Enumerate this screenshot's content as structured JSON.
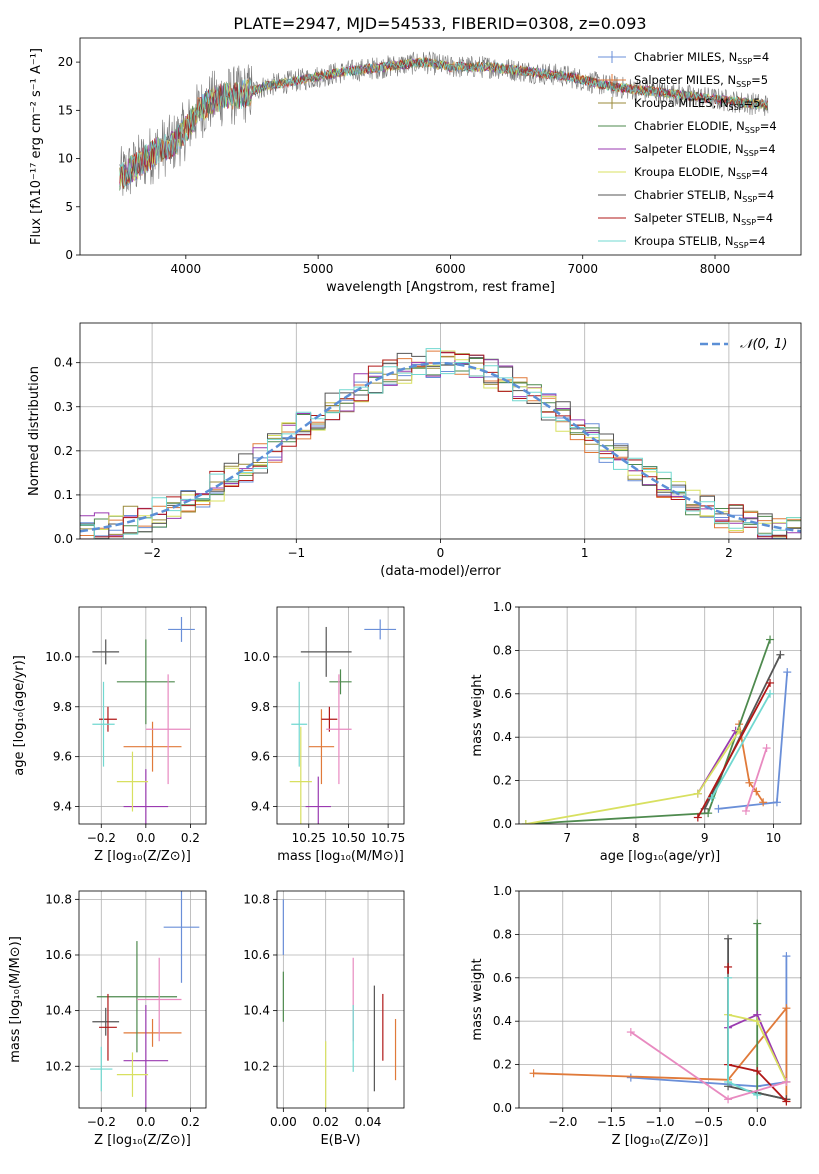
{
  "figure_title": "PLATE=2947, MJD=54533, FIBERID=0308, z=0.093",
  "colors": {
    "Chabrier MILES": "#6a8fd8",
    "Salpeter MILES": "#e07a3a",
    "Kroupa MILES": "#9a8a3a",
    "Chabrier ELODIE": "#4e8a4e",
    "Salpeter ELODIE": "#9a3ab0",
    "Kroupa ELODIE": "#d8e060",
    "Chabrier STELIB": "#555555",
    "Salpeter STELIB": "#b01818",
    "Kroupa STELIB": "#70d8d0",
    "pink": "#e88ac0",
    "gaussian": "#5b8fd6"
  },
  "chart_data": [
    {
      "id": "spectrum",
      "type": "line",
      "title": "PLATE=2947, MJD=54533, FIBERID=0308, z=0.093",
      "xlabel": "wavelength [Angstrom, rest frame]",
      "ylabel": "Flux [fλ10⁻¹⁷ erg cm⁻² s⁻¹ A⁻¹]",
      "xlim": [
        3200,
        8650
      ],
      "ylim": [
        0,
        22.5
      ],
      "xticks": [
        4000,
        5000,
        6000,
        7000,
        8000
      ],
      "yticks": [
        0,
        5,
        10,
        15,
        20
      ],
      "legend": "right",
      "series": [
        {
          "name": "Chabrier MILES, N",
          "sub": "SSP",
          "suffix": "=4"
        },
        {
          "name": "Salpeter MILES, N",
          "sub": "SSP",
          "suffix": "=5"
        },
        {
          "name": "Kroupa MILES, N",
          "sub": "SSP",
          "suffix": "=5"
        },
        {
          "name": "Chabrier ELODIE, N",
          "sub": "SSP",
          "suffix": "=4"
        },
        {
          "name": "Salpeter ELODIE, N",
          "sub": "SSP",
          "suffix": "=4"
        },
        {
          "name": "Kroupa ELODIE, N",
          "sub": "SSP",
          "suffix": "=4"
        },
        {
          "name": "Chabrier STELIB, N",
          "sub": "SSP",
          "suffix": "=4"
        },
        {
          "name": "Salpeter STELIB, N",
          "sub": "SSP",
          "suffix": "=4"
        },
        {
          "name": "Kroupa STELIB, N",
          "sub": "SSP",
          "suffix": "=4"
        }
      ],
      "continuum": {
        "x": [
          3500,
          3600,
          3700,
          3800,
          3900,
          4000,
          4100,
          4200,
          4300,
          4400,
          4600,
          4800,
          5000,
          5200,
          5500,
          5800,
          6000,
          6300,
          6600,
          6900,
          7200,
          7500,
          7800,
          8100,
          8400
        ],
        "y": [
          8,
          9,
          10,
          11,
          11.5,
          13,
          15,
          16,
          16.5,
          16.5,
          17.5,
          18,
          18.5,
          19,
          19.5,
          20,
          19.5,
          19.5,
          19,
          18.5,
          17.5,
          17,
          16.5,
          16,
          15.5
        ]
      }
    },
    {
      "id": "residuals",
      "type": "bar",
      "xlabel": "(data-model)/error",
      "ylabel": "Normed distribution",
      "xlim": [
        -2.5,
        2.5
      ],
      "ylim": [
        0,
        0.49
      ],
      "xticks": [
        -2,
        -1,
        0,
        1,
        2
      ],
      "yticks": [
        0.0,
        0.1,
        0.2,
        0.3,
        0.4
      ],
      "legend_label": "𝒩(0, 1)",
      "bin_width": 0.1,
      "grid": true
    },
    {
      "id": "age_vs_Z",
      "type": "scatter",
      "xlabel": "Z [log₁₀(Z/Z⊙)]",
      "ylabel": "age  [log₁₀(age/yr)]",
      "xlim": [
        -0.3,
        0.27
      ],
      "ylim": [
        9.33,
        10.2
      ],
      "xticks": [
        -0.2,
        0.0,
        0.2
      ],
      "yticks": [
        9.4,
        9.6,
        9.8,
        10.0
      ],
      "points": [
        {
          "c": "Chabrier MILES",
          "x": 0.16,
          "xe": 0.06,
          "y": 10.11,
          "ye": 0.05
        },
        {
          "c": "Salpeter MILES",
          "x": 0.03,
          "xe": 0.13,
          "y": 9.64,
          "ye": 0.1
        },
        {
          "c": "Chabrier ELODIE",
          "x": 0.0,
          "xe": 0.13,
          "y": 9.9,
          "ye": 0.17
        },
        {
          "c": "Salpeter ELODIE",
          "x": 0.0,
          "xe": 0.1,
          "y": 9.4,
          "ye": 0.15
        },
        {
          "c": "Kroupa ELODIE",
          "x": -0.06,
          "xe": 0.07,
          "y": 9.5,
          "ye": 0.12
        },
        {
          "c": "Chabrier STELIB",
          "x": -0.18,
          "xe": 0.06,
          "y": 10.02,
          "ye": 0.05
        },
        {
          "c": "Salpeter STELIB",
          "x": -0.17,
          "xe": 0.04,
          "y": 9.75,
          "ye": 0.05
        },
        {
          "c": "Kroupa STELIB",
          "x": -0.19,
          "xe": 0.05,
          "y": 9.73,
          "ye": 0.17
        },
        {
          "c": "pink",
          "x": 0.1,
          "xe": 0.1,
          "y": 9.71,
          "ye": 0.22
        }
      ]
    },
    {
      "id": "age_vs_mass",
      "type": "scatter",
      "xlabel": "mass [log₁₀(M/M⊙)]",
      "ylabel": "",
      "xlim": [
        10.05,
        10.85
      ],
      "ylim": [
        9.33,
        10.2
      ],
      "xticks": [
        10.25,
        10.5,
        10.75
      ],
      "yticks": [
        9.4,
        9.6,
        9.8,
        10.0
      ],
      "points": [
        {
          "c": "Chabrier MILES",
          "x": 10.7,
          "xe": 0.1,
          "y": 10.11,
          "ye": 0.04
        },
        {
          "c": "Salpeter MILES",
          "x": 10.33,
          "xe": 0.08,
          "y": 9.64,
          "ye": 0.15
        },
        {
          "c": "Chabrier ELODIE",
          "x": 10.45,
          "xe": 0.07,
          "y": 9.9,
          "ye": 0.05
        },
        {
          "c": "Salpeter ELODIE",
          "x": 10.31,
          "xe": 0.08,
          "y": 9.4,
          "ye": 0.12
        },
        {
          "c": "Kroupa ELODIE",
          "x": 10.2,
          "xe": 0.07,
          "y": 9.5,
          "ye": 0.22
        },
        {
          "c": "Chabrier STELIB",
          "x": 10.36,
          "xe": 0.16,
          "y": 10.02,
          "ye": 0.1
        },
        {
          "c": "Salpeter STELIB",
          "x": 10.38,
          "xe": 0.05,
          "y": 9.75,
          "ye": 0.05
        },
        {
          "c": "Kroupa STELIB",
          "x": 10.19,
          "xe": 0.05,
          "y": 9.73,
          "ye": 0.17
        },
        {
          "c": "pink",
          "x": 10.44,
          "xe": 0.08,
          "y": 9.71,
          "ye": 0.22
        }
      ]
    },
    {
      "id": "weight_vs_age",
      "type": "line",
      "xlabel": "age  [log₁₀(age/yr)]",
      "ylabel": "mass weight",
      "xlim": [
        6.3,
        10.4
      ],
      "ylim": [
        0,
        1.0
      ],
      "xticks": [
        7,
        8,
        9,
        10
      ],
      "yticks": [
        0.0,
        0.2,
        0.4,
        0.6,
        0.8,
        1.0
      ],
      "series": [
        {
          "c": "Chabrier MILES",
          "x": [
            9.2,
            10.05,
            10.2
          ],
          "y": [
            0.07,
            0.1,
            0.7
          ]
        },
        {
          "c": "Salpeter MILES",
          "x": [
            9.5,
            9.65,
            9.75,
            9.85
          ],
          "y": [
            0.46,
            0.19,
            0.15,
            0.1
          ]
        },
        {
          "c": "Chabrier ELODIE",
          "x": [
            6.4,
            9.05,
            9.95
          ],
          "y": [
            0.0,
            0.05,
            0.85
          ]
        },
        {
          "c": "Salpeter ELODIE",
          "x": [
            8.9,
            9.45
          ],
          "y": [
            0.14,
            0.43
          ]
        },
        {
          "c": "Kroupa ELODIE",
          "x": [
            6.4,
            8.9,
            9.5
          ],
          "y": [
            0.0,
            0.14,
            0.43
          ]
        },
        {
          "c": "Chabrier STELIB",
          "x": [
            9.0,
            10.1
          ],
          "y": [
            0.07,
            0.78
          ]
        },
        {
          "c": "Salpeter STELIB",
          "x": [
            8.9,
            9.95
          ],
          "y": [
            0.03,
            0.65
          ]
        },
        {
          "c": "Kroupa STELIB",
          "x": [
            9.1,
            9.95
          ],
          "y": [
            0.12,
            0.6
          ]
        },
        {
          "c": "pink",
          "x": [
            9.6,
            9.9
          ],
          "y": [
            0.06,
            0.35
          ]
        }
      ]
    },
    {
      "id": "mass_vs_Z",
      "type": "scatter",
      "xlabel": "Z [log₁₀(Z/Z⊙)]",
      "ylabel": "mass [log₁₀(M/M⊙)]",
      "xlim": [
        -0.3,
        0.27
      ],
      "ylim": [
        10.05,
        10.83
      ],
      "xticks": [
        -0.2,
        0.0,
        0.2
      ],
      "yticks": [
        10.2,
        10.4,
        10.6,
        10.8
      ],
      "points": [
        {
          "c": "Chabrier MILES",
          "x": 0.16,
          "xe": 0.08,
          "y": 10.7,
          "ye": 0.2
        },
        {
          "c": "Salpeter MILES",
          "x": 0.03,
          "xe": 0.13,
          "y": 10.32,
          "ye": 0.05
        },
        {
          "c": "Chabrier ELODIE",
          "x": -0.04,
          "xe": 0.18,
          "y": 10.45,
          "ye": 0.2
        },
        {
          "c": "Salpeter ELODIE",
          "x": 0.0,
          "xe": 0.1,
          "y": 10.22,
          "ye": 0.2
        },
        {
          "c": "Kroupa ELODIE",
          "x": -0.06,
          "xe": 0.07,
          "y": 10.17,
          "ye": 0.08
        },
        {
          "c": "Chabrier STELIB",
          "x": -0.18,
          "xe": 0.06,
          "y": 10.36,
          "ye": 0.05
        },
        {
          "c": "Salpeter STELIB",
          "x": -0.17,
          "xe": 0.04,
          "y": 10.34,
          "ye": 0.12
        },
        {
          "c": "Kroupa STELIB",
          "x": -0.2,
          "xe": 0.05,
          "y": 10.19,
          "ye": 0.08
        },
        {
          "c": "pink",
          "x": 0.06,
          "xe": 0.1,
          "y": 10.44,
          "ye": 0.15
        }
      ]
    },
    {
      "id": "mass_vs_EBV",
      "type": "scatter",
      "xlabel": "E(B-V)",
      "ylabel": "",
      "xlim": [
        -0.003,
        0.057
      ],
      "ylim": [
        10.05,
        10.83
      ],
      "xticks": [
        0.0,
        0.02,
        0.04
      ],
      "yticks": [
        10.2,
        10.4,
        10.6,
        10.8
      ],
      "points": [
        {
          "c": "Chabrier MILES",
          "x": 0.0,
          "xe": 0,
          "y": 10.7,
          "ye": 0.1
        },
        {
          "c": "Chabrier ELODIE",
          "x": 0.0,
          "xe": 0,
          "y": 10.45,
          "ye": 0.09
        },
        {
          "c": "Kroupa ELODIE",
          "x": 0.02,
          "xe": 0,
          "y": 10.17,
          "ye": 0.12
        },
        {
          "c": "pink",
          "x": 0.033,
          "xe": 0,
          "y": 10.44,
          "ye": 0.15
        },
        {
          "c": "Kroupa STELIB",
          "x": 0.033,
          "xe": 0,
          "y": 10.3,
          "ye": 0.12
        },
        {
          "c": "Chabrier STELIB",
          "x": 0.043,
          "xe": 0,
          "y": 10.3,
          "ye": 0.19
        },
        {
          "c": "Salpeter STELIB",
          "x": 0.047,
          "xe": 0,
          "y": 10.34,
          "ye": 0.12
        },
        {
          "c": "Salpeter MILES",
          "x": 0.053,
          "xe": 0,
          "y": 10.26,
          "ye": 0.11
        }
      ]
    },
    {
      "id": "weight_vs_Z",
      "type": "line",
      "xlabel": "Z [log₁₀(Z/Z⊙)]",
      "ylabel": "mass weight",
      "xlim": [
        -2.45,
        0.45
      ],
      "ylim": [
        0,
        1.0
      ],
      "xticks": [
        -2.0,
        -1.5,
        -1.0,
        -0.5,
        0.0
      ],
      "yticks": [
        0.0,
        0.2,
        0.4,
        0.6,
        0.8,
        1.0
      ],
      "series": [
        {
          "c": "Chabrier MILES",
          "x": [
            -1.3,
            0.0,
            0.3,
            0.3
          ],
          "y": [
            0.14,
            0.1,
            0.12,
            0.7
          ]
        },
        {
          "c": "Salpeter MILES",
          "x": [
            -2.3,
            -0.3,
            0.3,
            0.3
          ],
          "y": [
            0.16,
            0.13,
            0.46,
            0.03
          ]
        },
        {
          "c": "Chabrier ELODIE",
          "x": [
            0.0,
            0.0,
            0.3
          ],
          "y": [
            0.85,
            0.07,
            0.04
          ]
        },
        {
          "c": "Salpeter ELODIE",
          "x": [
            -0.3,
            0.0,
            0.3
          ],
          "y": [
            0.37,
            0.43,
            0.12
          ]
        },
        {
          "c": "Kroupa ELODIE",
          "x": [
            -0.3,
            0.0,
            0.3
          ],
          "y": [
            0.43,
            0.4,
            0.12
          ]
        },
        {
          "c": "Chabrier STELIB",
          "x": [
            -0.3,
            -0.3,
            0.3
          ],
          "y": [
            0.78,
            0.1,
            0.04
          ]
        },
        {
          "c": "Salpeter STELIB",
          "x": [
            -0.3,
            -0.3,
            0.0,
            0.3
          ],
          "y": [
            0.65,
            0.2,
            0.17,
            0.03
          ]
        },
        {
          "c": "Kroupa STELIB",
          "x": [
            -0.3,
            -0.3,
            0.0
          ],
          "y": [
            0.6,
            0.12,
            0.06
          ]
        },
        {
          "c": "pink",
          "x": [
            -1.3,
            -0.3,
            0.3
          ],
          "y": [
            0.35,
            0.04,
            0.12
          ]
        }
      ]
    }
  ]
}
